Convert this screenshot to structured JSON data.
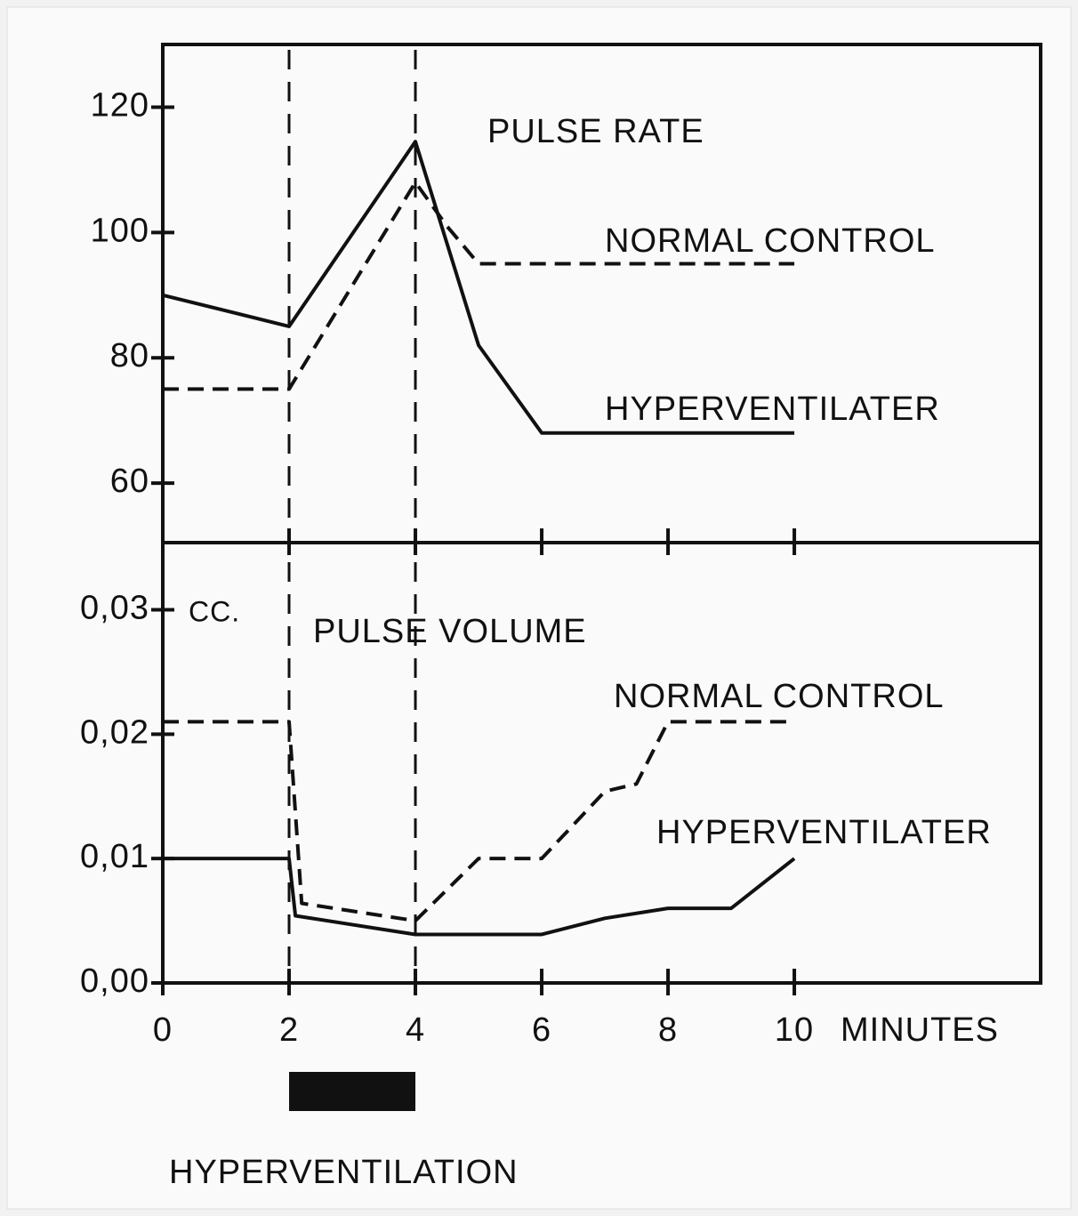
{
  "hyperventilation": {
    "label": "HYPERVENTILATION",
    "start": 2,
    "end": 4
  },
  "chart_data": [
    {
      "type": "line",
      "title": "PULSE RATE",
      "xlim": [
        0,
        13.9
      ],
      "xticks": [
        0,
        2,
        4,
        6,
        8,
        10
      ],
      "ylim": [
        50.5,
        130
      ],
      "yticks": [
        60,
        80,
        100,
        120
      ],
      "series": [
        {
          "name": "NORMAL CONTROL",
          "color": "#111111",
          "dash": true,
          "x": [
            0,
            2,
            4,
            4.5,
            5,
            10
          ],
          "values": [
            75,
            75,
            108,
            101,
            95,
            95
          ]
        },
        {
          "name": "HYPERVENTILATER",
          "color": "#111111",
          "dash": false,
          "x": [
            0,
            2,
            4,
            5,
            6,
            10
          ],
          "values": [
            90,
            85,
            114.5,
            82,
            68,
            68
          ]
        }
      ]
    },
    {
      "type": "line",
      "title": "PULSE VOLUME",
      "unit_label": "CC.",
      "x_label": "MINUTES",
      "xlim": [
        0,
        13.9
      ],
      "xticks": [
        0,
        2,
        4,
        6,
        8,
        10
      ],
      "ylim": [
        0,
        0.0354
      ],
      "yticks": [
        {
          "value": 0,
          "label": "0,00"
        },
        {
          "value": 0.01,
          "label": "0,01"
        },
        {
          "value": 0.02,
          "label": "0,02"
        },
        {
          "value": 0.03,
          "label": "0,03"
        }
      ],
      "series": [
        {
          "name": "NORMAL CONTROL",
          "color": "#111111",
          "dash": true,
          "x": [
            0,
            2,
            2.2,
            4,
            5,
            6,
            7,
            7.5,
            8,
            10
          ],
          "values": [
            0.021,
            0.021,
            0.0064,
            0.005,
            0.01,
            0.01,
            0.0154,
            0.016,
            0.021,
            0.021
          ]
        },
        {
          "name": "HYPERVENTILATER",
          "color": "#111111",
          "dash": false,
          "x": [
            0,
            2,
            2.1,
            4,
            6,
            7,
            8,
            9,
            10
          ],
          "values": [
            0.01,
            0.01,
            0.0054,
            0.0039,
            0.0039,
            0.0052,
            0.006,
            0.006,
            0.01
          ]
        }
      ]
    }
  ]
}
